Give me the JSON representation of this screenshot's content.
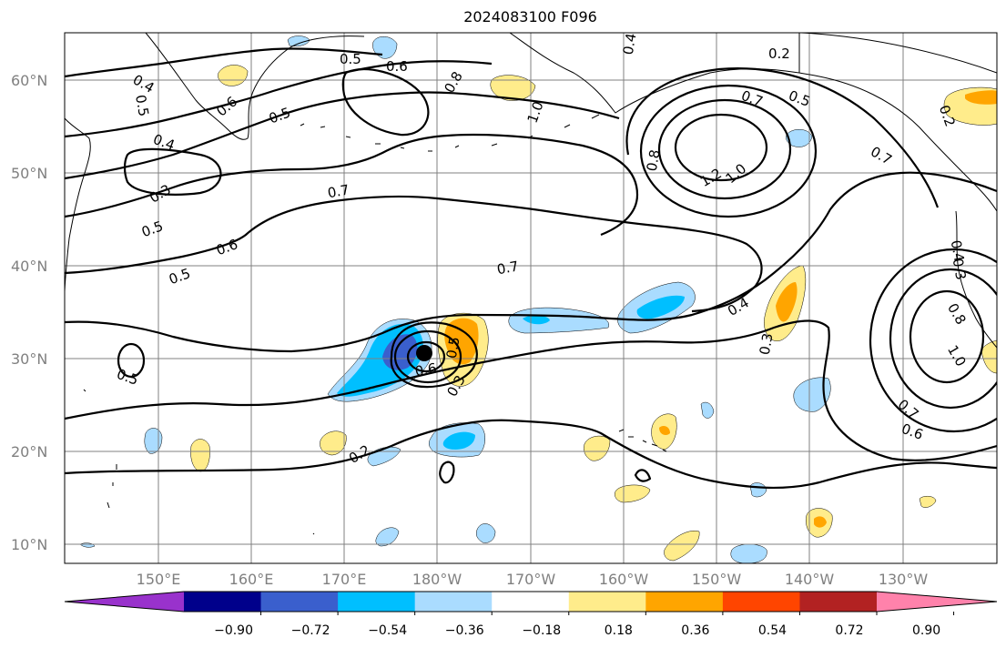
{
  "title": "2024083100 F096",
  "lat_labels": [
    "60°N",
    "50°N",
    "40°N",
    "30°N",
    "20°N",
    "10°N"
  ],
  "lon_labels": [
    "150°E",
    "160°E",
    "170°E",
    "180°W",
    "170°W",
    "160°W",
    "150°W",
    "140°W",
    "130°W"
  ],
  "colorbar": {
    "tick_labels": [
      "−0.90",
      "−0.72",
      "−0.54",
      "−0.36",
      "−0.18",
      "0.18",
      "0.36",
      "0.54",
      "0.72",
      "0.90"
    ],
    "colors": [
      "#9932cc",
      "#00008b",
      "#3a5fcd",
      "#00bfff",
      "#aadcff",
      "#ffffff",
      "#ffec8b",
      "#ffa500",
      "#ff4500",
      "#b22222",
      "#ff82ab"
    ]
  },
  "contour_labels": {
    "c1": "0.5",
    "c2": "0.6",
    "c3": "0.8",
    "c4": "1.0",
    "c5": "0.4",
    "c6": "0.2",
    "c7": "0.4",
    "c8": "0.5",
    "c9": "0.6",
    "c10": "0.5",
    "c11": "0.7",
    "c12": "0.4",
    "c13": "0.3",
    "c14": "0.5",
    "c15": "0.7",
    "c16": "0.6",
    "c17": "0.5",
    "c18": "0.7",
    "c19": "0.8",
    "c20": "1.2",
    "c21": "1.0",
    "c22": "0.7",
    "c23": "0.5",
    "c24": "0.2",
    "c25": "0.5",
    "c26": "0.6",
    "c27": "0.5",
    "c28": "0.3",
    "c29": "0.4",
    "c30": "0.3",
    "c31": "0.2",
    "c32": "0.7",
    "c33": "0.6",
    "c34": "1.0",
    "c35": "0.8",
    "c36": "0.3",
    "c37": "0.4"
  }
}
